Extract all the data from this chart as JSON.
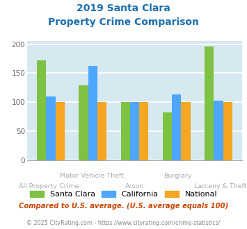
{
  "title_line1": "2019 Santa Clara",
  "title_line2": "Property Crime Comparison",
  "categories": [
    "All Property Crime",
    "Motor Vehicle Theft",
    "Arson",
    "Burglary",
    "Larceny & Theft"
  ],
  "santa_clara": [
    172,
    129,
    100,
    82,
    196
  ],
  "california": [
    110,
    163,
    100,
    113,
    103
  ],
  "national": [
    100,
    100,
    100,
    100,
    100
  ],
  "color_sc": "#7dc242",
  "color_ca": "#4da6ff",
  "color_na": "#f5a623",
  "ylim_max": 205,
  "yticks": [
    0,
    50,
    100,
    150,
    200
  ],
  "bg_color": "#d6e8f0",
  "title_color": "#1a6faf",
  "footer_text": "Compared to U.S. average. (U.S. average equals 100)",
  "copyright_text": "© 2025 CityRating.com - https://www.cityrating.com/crime-statistics/",
  "footer_color": "#cc4400",
  "copyright_color": "#888888",
  "bar_width": 0.22,
  "tick_color": "#aaaaaa",
  "label_color_upper": "#b0a090",
  "label_color_lower": "#b0a090"
}
